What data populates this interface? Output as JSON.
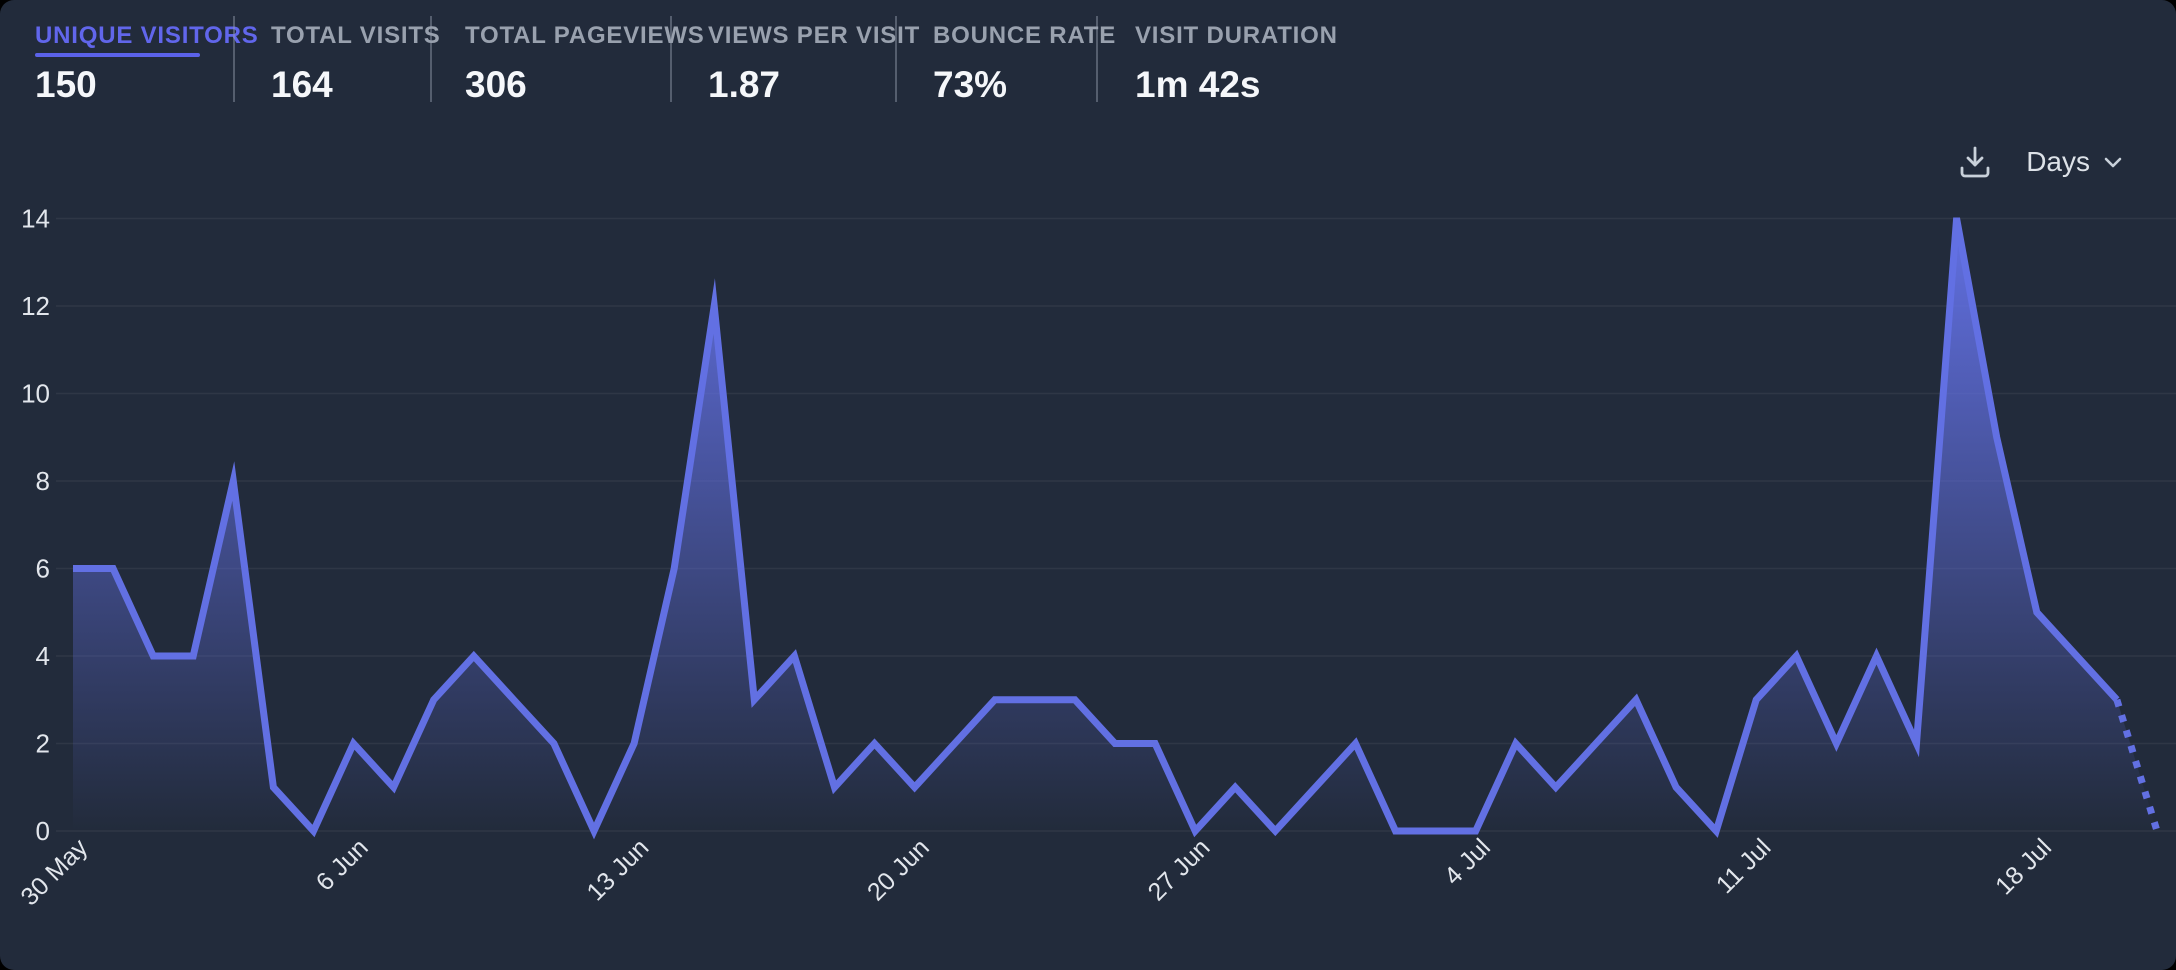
{
  "header": {
    "metrics": [
      {
        "label": "UNIQUE VISITORS",
        "value": "150",
        "active": true
      },
      {
        "label": "TOTAL VISITS",
        "value": "164",
        "active": false
      },
      {
        "label": "TOTAL PAGEVIEWS",
        "value": "306",
        "active": false
      },
      {
        "label": "VIEWS PER VISIT",
        "value": "1.87",
        "active": false
      },
      {
        "label": "BOUNCE RATE",
        "value": "73%",
        "active": false
      },
      {
        "label": "VISIT DURATION",
        "value": "1m 42s",
        "active": false
      }
    ]
  },
  "toolbar": {
    "download_icon": "download-icon",
    "interval_label": "Days",
    "chevron_icon": "chevron-down-icon"
  },
  "chart_data": {
    "type": "line",
    "series_name": "Unique visitors per day",
    "values": [
      6,
      6,
      4,
      4,
      8,
      1,
      0,
      2,
      1,
      3,
      4,
      3,
      2,
      0,
      2,
      6,
      12,
      3,
      4,
      1,
      2,
      1,
      2,
      3,
      3,
      3,
      2,
      2,
      0,
      1,
      0,
      1,
      2,
      0,
      0,
      0,
      2,
      1,
      2,
      3,
      1,
      0,
      3,
      4,
      2,
      4,
      2,
      14,
      9,
      5,
      4,
      3,
      0
    ],
    "num_points": 53,
    "dashed_from_index": 51,
    "x_tick_labels": [
      "30 May",
      "6 Jun",
      "13 Jun",
      "20 Jun",
      "27 Jun",
      "4 Jul",
      "11 Jul",
      "18 Jul"
    ],
    "x_tick_day_indices": [
      0,
      7,
      14,
      21,
      28,
      35,
      42,
      49
    ],
    "y_ticks": [
      0,
      2,
      4,
      6,
      8,
      10,
      12,
      14
    ],
    "ylim": [
      0,
      14
    ],
    "grid": true,
    "legend": false,
    "colors": {
      "line": "#6270e3",
      "fill": "#6270e3",
      "fill_opacity_top": 0.24,
      "grid": "rgba(255,255,255,0.06)",
      "axis_labels": "#e2e6ec",
      "background": "#222b3b"
    }
  }
}
